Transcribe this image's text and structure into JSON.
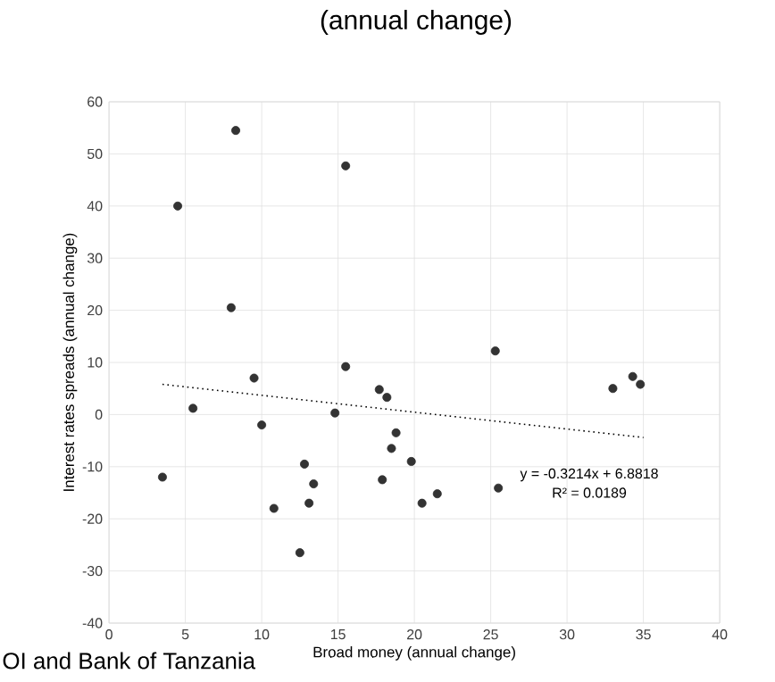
{
  "chart_data": {
    "type": "scatter",
    "title": "(annual change)",
    "xlabel": "Broad money (annual change)",
    "ylabel": "Interest rates spreads (annual change)",
    "xlim": [
      0,
      40
    ],
    "ylim": [
      -40,
      60
    ],
    "xticks": [
      0,
      5,
      10,
      15,
      20,
      25,
      30,
      35,
      40
    ],
    "yticks": [
      -40,
      -30,
      -20,
      -10,
      0,
      10,
      20,
      30,
      40,
      50,
      60
    ],
    "grid": true,
    "series": [
      {
        "color": "#333333",
        "marker": "circle",
        "x": [
          3.5,
          4.5,
          5.5,
          8,
          8.3,
          9.5,
          10,
          10.8,
          12.5,
          12.8,
          13.1,
          13.4,
          14.8,
          15.5,
          15.5,
          17.7,
          17.9,
          18.2,
          18.5,
          18.8,
          19.8,
          20.5,
          21.5,
          25.3,
          25.5,
          33,
          34.3,
          34.8
        ],
        "values": [
          -12,
          40,
          1.2,
          20.5,
          54.5,
          7,
          -2,
          -18,
          -26.5,
          -9.5,
          -17,
          -13.3,
          0.3,
          47.7,
          9.2,
          4.8,
          -12.5,
          3.3,
          -6.5,
          -3.5,
          -9,
          -17,
          -15.2,
          12.2,
          -14.1,
          5,
          7.3,
          5.8
        ]
      },
      {
        "type": "line",
        "color": "#000000",
        "marker": "none",
        "line_style": "dotted",
        "x": [
          3.5,
          35
        ],
        "values": [
          5.8,
          -4.4
        ]
      }
    ],
    "annotations": [
      "y = -0.3214x + 6.8818",
      "R² = 0.0189",
      "OI and Bank of Tanzania"
    ]
  }
}
